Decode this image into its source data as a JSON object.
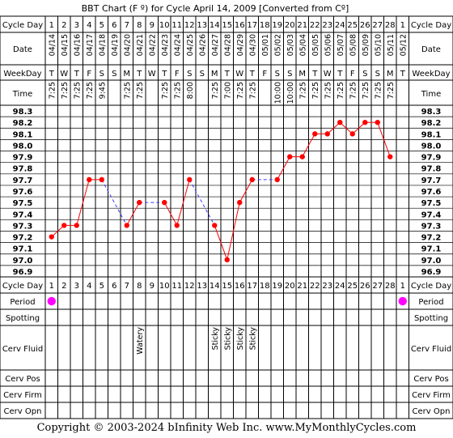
{
  "title": "BBT Chart (F º) for Cycle April 14, 2009  [Converted from Cº]",
  "row_labels": {
    "cycle_day": "Cycle Day",
    "date": "Date",
    "weekday": "WeekDay",
    "time": "Time",
    "period": "Period",
    "spotting": "Spotting",
    "cerv_fluid": "Cerv Fluid",
    "cerv_pos": "Cerv Pos",
    "cerv_firm": "Cerv Firm",
    "cerv_opn": "Cerv Opn"
  },
  "days": [
    1,
    2,
    3,
    4,
    5,
    6,
    7,
    8,
    9,
    10,
    11,
    12,
    13,
    14,
    15,
    16,
    17,
    18,
    19,
    20,
    21,
    22,
    23,
    24,
    25,
    26,
    27,
    28,
    1
  ],
  "dates": [
    "04/14",
    "04/15",
    "04/16",
    "04/17",
    "04/18",
    "04/19",
    "04/20",
    "04/21",
    "04/22",
    "04/23",
    "04/24",
    "04/25",
    "04/26",
    "04/27",
    "04/28",
    "04/29",
    "04/30",
    "05/01",
    "05/02",
    "05/03",
    "05/04",
    "05/05",
    "05/06",
    "05/07",
    "05/08",
    "05/09",
    "05/10",
    "05/11",
    "05/12"
  ],
  "weekdays": [
    "T",
    "W",
    "T",
    "F",
    "S",
    "S",
    "M",
    "T",
    "W",
    "T",
    "F",
    "S",
    "S",
    "M",
    "T",
    "W",
    "T",
    "F",
    "S",
    "S",
    "M",
    "T",
    "W",
    "T",
    "F",
    "S",
    "S",
    "M",
    "T"
  ],
  "times": [
    "7:25",
    "7:25",
    "7:25",
    "7:25",
    "9:45",
    "",
    "7:25",
    "7:25",
    "",
    "7:25",
    "7:25",
    "8:00",
    "",
    "7:25",
    "7:00",
    "7:25",
    "7:25",
    "",
    "10:00",
    "10:00",
    "7:25",
    "7:25",
    "7:25",
    "7:25",
    "7:25",
    "7:25",
    "7:25",
    "7:25",
    ""
  ],
  "cerv_fluid": [
    "",
    "",
    "",
    "",
    "",
    "",
    "",
    "Watery",
    "",
    "",
    "",
    "",
    "",
    "Sticky",
    "Sticky",
    "Sticky",
    "Sticky",
    "",
    "",
    "",
    "",
    "",
    "",
    "",
    "",
    "",
    "",
    "",
    ""
  ],
  "period": [
    true,
    false,
    false,
    false,
    false,
    false,
    false,
    false,
    false,
    false,
    false,
    false,
    false,
    false,
    false,
    false,
    false,
    false,
    false,
    false,
    false,
    false,
    false,
    false,
    false,
    false,
    false,
    false,
    true
  ],
  "y_ticks": [
    "98.3",
    "98.2",
    "98.1",
    "98.0",
    "97.9",
    "97.8",
    "97.7",
    "97.6",
    "97.5",
    "97.4",
    "97.3",
    "97.2",
    "97.1",
    "97.0",
    "96.9"
  ],
  "chart_data": {
    "type": "line",
    "title": "BBT Chart (F º) for Cycle April 14, 2009  [Converted from Cº]",
    "xlabel": "Cycle Day",
    "ylabel": "",
    "x": [
      1,
      2,
      3,
      4,
      5,
      6,
      7,
      8,
      9,
      10,
      11,
      12,
      13,
      14,
      15,
      16,
      17,
      18,
      19,
      20,
      21,
      22,
      23,
      24,
      25,
      26,
      27,
      28
    ],
    "values": [
      97.2,
      97.3,
      97.3,
      97.7,
      97.7,
      null,
      97.3,
      97.5,
      null,
      97.5,
      97.3,
      97.7,
      null,
      97.3,
      97.0,
      97.5,
      97.7,
      null,
      97.7,
      97.9,
      97.9,
      98.1,
      98.1,
      98.2,
      98.1,
      98.2,
      98.2,
      97.9
    ],
    "ylim": [
      96.9,
      98.3
    ],
    "grid": true,
    "colors": {
      "line": "#ff0000",
      "gap_line": "#3b3bff",
      "period": "#ff00ff"
    }
  },
  "footer": "Copyright © 2003-2024 bInfinity Web Inc.     www.MyMonthlyCycles.com"
}
